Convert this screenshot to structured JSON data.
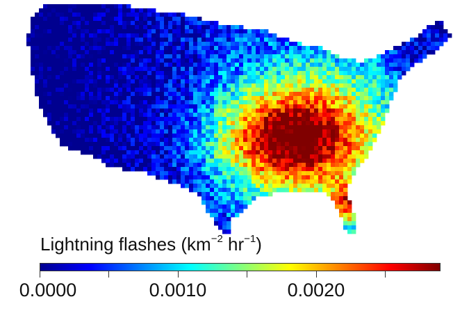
{
  "chart_data": {
    "type": "heatmap",
    "subject": "Lightning flash density over the contiguous United States",
    "colorbar": {
      "label_main": "Lightning flashes (km",
      "label_exp1": "−2",
      "label_mid": " hr",
      "label_exp2": "−1",
      "label_end": ")",
      "range": [
        0.0,
        0.0029
      ],
      "tick_values": [
        0.0,
        0.0005,
        0.001,
        0.0015,
        0.002,
        0.0025
      ],
      "tick_labels": [
        "0.0000",
        "",
        "0.0010",
        "",
        "0.0020",
        ""
      ],
      "colormap": [
        "#00008f",
        "#0000ff",
        "#0080ff",
        "#00ffff",
        "#80ff80",
        "#ffff00",
        "#ff8000",
        "#ff0000",
        "#800000"
      ]
    }
  }
}
